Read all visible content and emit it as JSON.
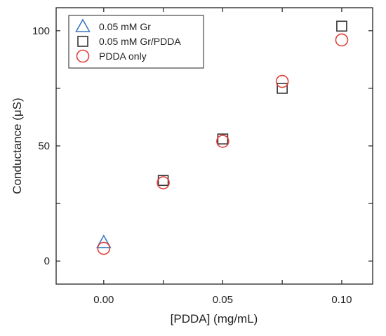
{
  "chart_data": {
    "type": "scatter",
    "xlabel": "[PDDA] (mg/mL)",
    "ylabel": "Conductance (μS)",
    "xlim": [
      -0.02,
      0.113
    ],
    "ylim": [
      -10,
      110
    ],
    "xticks": [
      0.0,
      0.025,
      0.05,
      0.075,
      0.1
    ],
    "xtick_labels": [
      "0.00",
      "",
      "0.05",
      "",
      "0.10"
    ],
    "yticks": [
      0,
      25,
      50,
      75,
      100
    ],
    "ytick_labels": [
      "0",
      "",
      "50",
      "",
      "100"
    ],
    "grid": false,
    "legend_position": "top-left",
    "series": [
      {
        "name": "0.05 mM Gr",
        "marker": "triangle",
        "color": "#3a78c4",
        "points": [
          [
            0.0,
            8
          ]
        ]
      },
      {
        "name": "0.05 mM Gr/PDDA",
        "marker": "square",
        "color": "#333333",
        "points": [
          [
            0.025,
            35
          ],
          [
            0.05,
            53
          ],
          [
            0.075,
            75
          ],
          [
            0.1,
            102
          ]
        ]
      },
      {
        "name": "PDDA only",
        "marker": "circle",
        "color": "#e0403c",
        "points": [
          [
            0.0,
            5.5
          ],
          [
            0.025,
            34
          ],
          [
            0.05,
            52
          ],
          [
            0.075,
            78
          ],
          [
            0.1,
            96
          ]
        ]
      }
    ]
  }
}
